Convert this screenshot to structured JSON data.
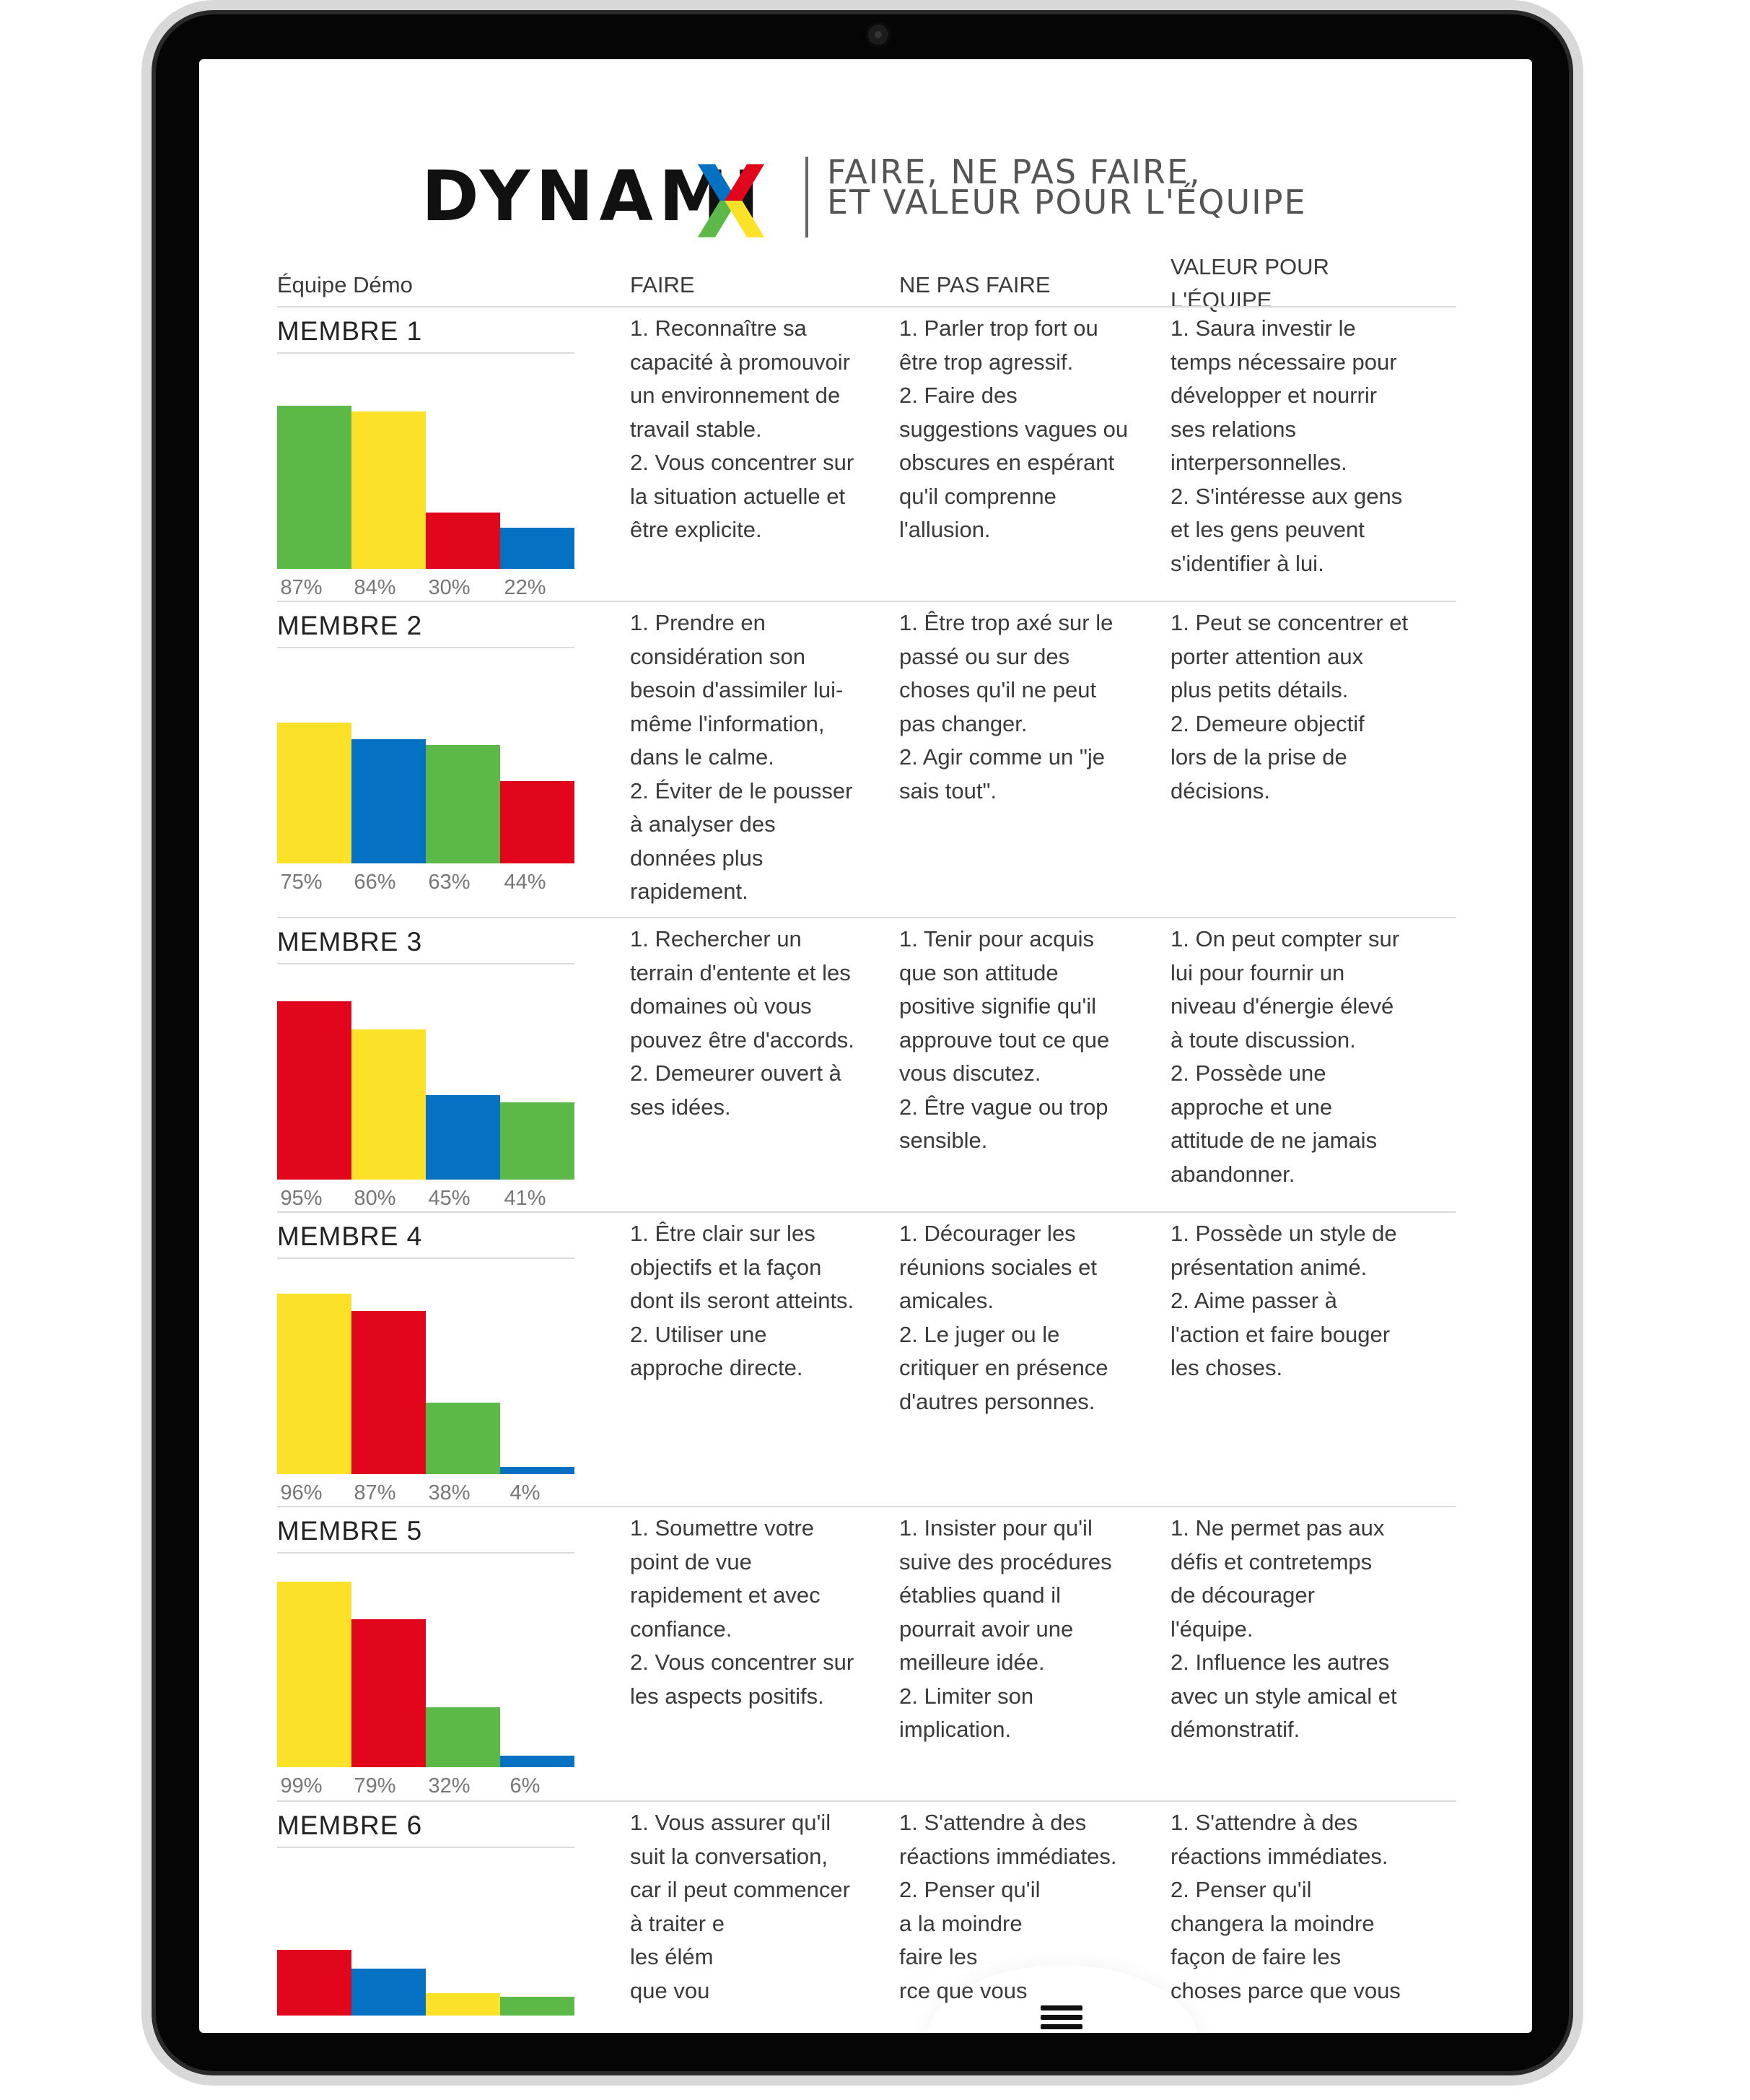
{
  "brand": {
    "logo_text": "DYNAMI",
    "tagline_line1": "FAIRE, NE PAS FAIRE,",
    "tagline_line2": "ET VALEUR POUR L'ÉQUIPE"
  },
  "table": {
    "team_label": "Équipe Démo",
    "col_faire": "FAIRE",
    "col_ne_pas_faire": "NE PAS FAIRE",
    "col_valeur": "VALEUR POUR\nL'ÉQUIPE"
  },
  "colors": {
    "green": "#5cb947",
    "yellow": "#fbe128",
    "red": "#e1061b",
    "blue": "#0571c3"
  },
  "members": [
    {
      "name": "MEMBRE 1",
      "bars": [
        {
          "color": "green",
          "value": 87,
          "label": "87%"
        },
        {
          "color": "yellow",
          "value": 84,
          "label": "84%"
        },
        {
          "color": "red",
          "value": 30,
          "label": "30%"
        },
        {
          "color": "blue",
          "value": 22,
          "label": "22%"
        }
      ],
      "faire": "1. Reconnaître sa\ncapacité à promouvoir\nun environnement de\ntravail stable.\n2. Vous concentrer sur\nla situation actuelle et\nêtre explicite.",
      "ne_pas_faire": "1. Parler trop fort ou\nêtre trop agressif.\n2. Faire des\nsuggestions vagues ou\nobscures en espérant\nqu'il comprenne\nl'allusion.",
      "valeur": "1. Saura investir le\ntemps nécessaire pour\ndévelopper et nourrir\nses relations\ninterpersonnelles.\n2. S'intéresse aux gens\net les gens peuvent\ns'identifier à lui."
    },
    {
      "name": "MEMBRE 2",
      "bars": [
        {
          "color": "yellow",
          "value": 75,
          "label": "75%"
        },
        {
          "color": "blue",
          "value": 66,
          "label": "66%"
        },
        {
          "color": "green",
          "value": 63,
          "label": "63%"
        },
        {
          "color": "red",
          "value": 44,
          "label": "44%"
        }
      ],
      "faire": "1. Prendre en\nconsidération son\nbesoin d'assimiler lui-\nmême l'information,\ndans le calme.\n2. Éviter de le pousser\nà analyser des\ndonnées plus\nrapidement.",
      "ne_pas_faire": "1. Être trop axé sur le\npassé ou sur des\nchoses qu'il ne peut\npas changer.\n2. Agir comme un \"je\nsais tout\".",
      "valeur": "1. Peut se concentrer et\nporter attention aux\nplus petits détails.\n2. Demeure objectif\nlors de la prise de\ndécisions."
    },
    {
      "name": "MEMBRE 3",
      "bars": [
        {
          "color": "red",
          "value": 95,
          "label": "95%"
        },
        {
          "color": "yellow",
          "value": 80,
          "label": "80%"
        },
        {
          "color": "blue",
          "value": 45,
          "label": "45%"
        },
        {
          "color": "green",
          "value": 41,
          "label": "41%"
        }
      ],
      "faire": "1. Rechercher un\nterrain d'entente et les\ndomaines où vous\npouvez être d'accords.\n2. Demeurer ouvert à\nses idées.",
      "ne_pas_faire": "1. Tenir pour acquis\nque son attitude\npositive signifie qu'il\napprouve tout ce que\nvous discutez.\n2. Être vague ou trop\nsensible.",
      "valeur": "1. On peut compter sur\nlui pour fournir un\nniveau d'énergie élevé\nà toute discussion.\n2. Possède une\napproche et une\nattitude de ne jamais\nabandonner."
    },
    {
      "name": "MEMBRE 4",
      "bars": [
        {
          "color": "yellow",
          "value": 96,
          "label": "96%"
        },
        {
          "color": "red",
          "value": 87,
          "label": "87%"
        },
        {
          "color": "green",
          "value": 38,
          "label": "38%"
        },
        {
          "color": "blue",
          "value": 4,
          "label": "4%"
        }
      ],
      "faire": "1. Être clair sur les\nobjectifs et la façon\ndont ils seront atteints.\n2. Utiliser une\napproche directe.",
      "ne_pas_faire": "1. Décourager les\nréunions sociales et\namicales.\n2. Le juger ou le\ncritiquer en présence\nd'autres personnes.",
      "valeur": "1. Possède un style de\nprésentation animé.\n2. Aime passer à\nl'action et faire bouger\nles choses."
    },
    {
      "name": "MEMBRE 5",
      "bars": [
        {
          "color": "yellow",
          "value": 99,
          "label": "99%"
        },
        {
          "color": "red",
          "value": 79,
          "label": "79%"
        },
        {
          "color": "green",
          "value": 32,
          "label": "32%"
        },
        {
          "color": "blue",
          "value": 6,
          "label": "6%"
        }
      ],
      "faire": "1. Soumettre votre\npoint de vue\nrapidement et avec\nconfiance.\n2. Vous concentrer sur\nles aspects positifs.",
      "ne_pas_faire": "1. Insister pour qu'il\nsuive des procédures\nétablies quand il\npourrait avoir une\nmeilleure idée.\n2. Limiter son\nimplication.",
      "valeur": "1. Ne permet pas aux\ndéfis et contretemps\nde décourager\nl'équipe.\n2. Influence les autres\navec un style amical et\ndémonstratif."
    },
    {
      "name": "MEMBRE 6",
      "bars": [
        {
          "color": "red",
          "value": 35
        },
        {
          "color": "blue",
          "value": 25
        },
        {
          "color": "yellow",
          "value": 12
        },
        {
          "color": "green",
          "value": 10
        }
      ],
      "faire": "1. Vous assurer qu'il\nsuit la conversation,\ncar il peut commencer\nà traiter e\nles élém\nque vou",
      "ne_pas_faire": "1. S'attendre à des\nréactions immédiates.\n2. Penser qu'il\n      a la moindre\n        faire les\n        rce que vous",
      "valeur": "1. S'attendre à des\nréactions immédiates.\n2. Penser qu'il\nchangera la moindre\nfaçon de faire les\nchoses parce que vous"
    }
  ],
  "menu": {
    "icon": "hamburger-menu-icon"
  }
}
